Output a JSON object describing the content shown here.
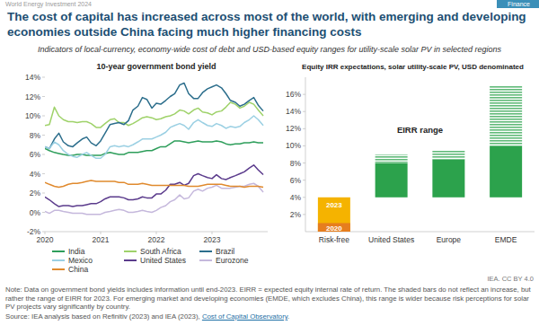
{
  "page": {
    "report": "World Energy Investment 2024",
    "section": "Finance",
    "title": "The cost of capital has increased across most of the world, with emerging and developing economies outside China facing much higher financing costs",
    "subtitle": "Indicators of local-currency, economy-wide cost of debt and USD-based equity ranges for utility-scale solar PV in selected regions",
    "credit": "IEA. CC BY 4.0",
    "note": "Note: Data on government bond yields includes information until end-2023. EIRR = expected equity internal rate of return. The shaded bars do not reflect an increase, but rather the range of EIRR for 2023. For emerging market and developing economies (EMDE, which excludes China), this range is wider because risk perceptions for solar PV projects vary significantly by country.",
    "source": "Source: IEA analysis based on Refinitiv (2023) and IEA (2023),",
    "source_link": "Cost of Capital Observatory",
    "source_end": "."
  },
  "chart_data": [
    {
      "type": "line",
      "title": "10-year government bond yield",
      "x": [
        2020,
        2020.08,
        2020.17,
        2020.25,
        2020.33,
        2020.42,
        2020.5,
        2020.58,
        2020.67,
        2020.75,
        2020.83,
        2020.92,
        2021,
        2021.08,
        2021.17,
        2021.25,
        2021.33,
        2021.42,
        2021.5,
        2021.58,
        2021.67,
        2021.75,
        2021.83,
        2021.92,
        2022,
        2022.08,
        2022.17,
        2022.25,
        2022.33,
        2022.42,
        2022.5,
        2022.58,
        2022.67,
        2022.75,
        2022.83,
        2022.92,
        2023,
        2023.08,
        2023.17,
        2023.25,
        2023.33,
        2023.42,
        2023.5,
        2023.58,
        2023.67,
        2023.75,
        2023.83,
        2023.92
      ],
      "xlim": [
        2020,
        2024
      ],
      "xticks": [
        2020,
        2021,
        2022,
        2023
      ],
      "ylim": [
        -2,
        14
      ],
      "yticks": [
        {
          "value": -2,
          "label": "-2%"
        },
        {
          "value": 0,
          "label": "0%"
        },
        {
          "value": 2,
          "label": "2%"
        },
        {
          "value": 4,
          "label": "4%"
        },
        {
          "value": 6,
          "label": "6%"
        },
        {
          "value": 8,
          "label": "8%"
        },
        {
          "value": 10,
          "label": "10%"
        },
        {
          "value": 12,
          "label": "12%"
        },
        {
          "value": 14,
          "label": "14%"
        }
      ],
      "grid": false,
      "legend": "bottom",
      "series": [
        {
          "name": "India",
          "color": "#2e9e5b",
          "values": [
            6.6,
            6.4,
            6.2,
            6.1,
            6.0,
            5.9,
            5.9,
            6.0,
            6.0,
            5.9,
            5.9,
            5.9,
            5.9,
            6.1,
            6.2,
            6.1,
            6.0,
            6.0,
            6.2,
            6.2,
            6.2,
            6.3,
            6.4,
            6.4,
            6.6,
            6.8,
            6.8,
            7.1,
            7.4,
            7.4,
            7.3,
            7.2,
            7.3,
            7.4,
            7.3,
            7.3,
            7.3,
            7.4,
            7.3,
            7.1,
            7.0,
            7.1,
            7.1,
            7.2,
            7.2,
            7.3,
            7.2,
            7.2
          ]
        },
        {
          "name": "South Africa",
          "color": "#9fd26a",
          "values": [
            9.0,
            9.1,
            10.9,
            10.0,
            9.6,
            9.4,
            9.4,
            9.3,
            9.4,
            9.4,
            9.2,
            8.8,
            8.8,
            9.2,
            9.6,
            9.7,
            9.3,
            9.3,
            9.0,
            9.2,
            9.5,
            9.8,
            9.9,
            9.8,
            9.6,
            9.7,
            9.9,
            10.0,
            10.2,
            10.6,
            10.5,
            10.2,
            10.6,
            10.8,
            10.4,
            10.3,
            10.1,
            10.4,
            10.5,
            10.9,
            11.4,
            11.2,
            10.8,
            11.0,
            11.4,
            11.2,
            10.6,
            10.0
          ]
        },
        {
          "name": "Brazil",
          "color": "#2c6e8c",
          "values": [
            6.8,
            6.6,
            7.6,
            8.2,
            7.3,
            6.9,
            6.8,
            7.2,
            7.6,
            7.8,
            7.2,
            6.9,
            7.4,
            8.2,
            9.1,
            9.2,
            9.3,
            9.1,
            9.5,
            10.6,
            11.0,
            11.9,
            11.7,
            10.8,
            11.3,
            11.2,
            11.6,
            12.0,
            12.3,
            13.2,
            13.4,
            12.3,
            11.8,
            11.8,
            12.4,
            12.8,
            13.0,
            13.2,
            12.9,
            12.3,
            11.6,
            11.4,
            11.0,
            11.2,
            11.6,
            11.9,
            11.1,
            10.5
          ]
        },
        {
          "name": "Mexico",
          "color": "#9bd0e3",
          "values": [
            6.8,
            6.6,
            7.3,
            7.0,
            6.4,
            6.0,
            5.8,
            5.7,
            6.0,
            6.2,
            5.9,
            5.6,
            5.6,
            6.0,
            6.8,
            6.9,
            6.8,
            6.9,
            6.8,
            7.0,
            7.3,
            7.6,
            7.6,
            7.6,
            7.8,
            8.0,
            8.3,
            8.8,
            9.0,
            9.2,
            9.0,
            8.6,
            9.3,
            9.6,
            9.3,
            9.0,
            8.9,
            9.2,
            9.0,
            8.7,
            8.9,
            8.8,
            8.9,
            9.3,
            9.6,
            10.0,
            9.6,
            9.0
          ]
        },
        {
          "name": "United States",
          "color": "#5b3b8c",
          "values": [
            1.6,
            1.3,
            0.9,
            0.6,
            0.7,
            0.7,
            0.6,
            0.7,
            0.7,
            0.8,
            0.9,
            0.9,
            1.1,
            1.4,
            1.6,
            1.6,
            1.6,
            1.5,
            1.3,
            1.3,
            1.4,
            1.6,
            1.5,
            1.5,
            1.9,
            1.9,
            2.3,
            2.9,
            2.9,
            3.1,
            2.8,
            3.0,
            3.8,
            4.0,
            3.8,
            3.6,
            3.5,
            3.9,
            3.5,
            3.4,
            3.6,
            3.8,
            4.0,
            4.2,
            4.6,
            4.9,
            4.4,
            3.9
          ]
        },
        {
          "name": "Eurozone",
          "color": "#c5b8dc",
          "values": [
            0.1,
            -0.1,
            0.2,
            0.2,
            0.1,
            0.0,
            -0.1,
            -0.1,
            -0.1,
            -0.2,
            -0.2,
            -0.2,
            -0.2,
            0.0,
            0.1,
            0.2,
            0.3,
            0.2,
            0.0,
            0.0,
            0.1,
            0.2,
            0.1,
            0.0,
            0.2,
            0.5,
            0.7,
            1.1,
            1.3,
            1.8,
            1.4,
            1.5,
            2.2,
            2.4,
            2.2,
            2.5,
            2.6,
            2.8,
            2.5,
            2.5,
            2.5,
            2.6,
            2.7,
            2.7,
            2.9,
            3.0,
            2.7,
            2.1
          ]
        },
        {
          "name": "China",
          "color": "#e08a2e",
          "values": [
            3.1,
            2.9,
            2.7,
            2.6,
            2.7,
            2.9,
            3.0,
            3.0,
            3.1,
            3.2,
            3.3,
            3.2,
            3.2,
            3.2,
            3.2,
            3.2,
            3.1,
            3.1,
            2.9,
            2.9,
            2.9,
            3.0,
            2.9,
            2.8,
            2.8,
            2.8,
            2.8,
            2.8,
            2.8,
            2.8,
            2.8,
            2.7,
            2.7,
            2.7,
            2.8,
            2.9,
            2.9,
            2.9,
            2.9,
            2.8,
            2.7,
            2.7,
            2.7,
            2.6,
            2.7,
            2.7,
            2.7,
            2.6
          ]
        }
      ]
    },
    {
      "type": "bar",
      "title": "Equity IRR expectations, solar utility-scale PV, USD denominated",
      "categories": [
        "Risk-free",
        "United States",
        "Europe",
        "EMDE"
      ],
      "ylim": [
        0,
        18
      ],
      "yticks": [
        {
          "value": 2,
          "label": "2%"
        },
        {
          "value": 4,
          "label": "4%"
        },
        {
          "value": 6,
          "label": "6%"
        },
        {
          "value": 8,
          "label": "8%"
        },
        {
          "value": 10,
          "label": "10%"
        },
        {
          "value": 12,
          "label": "12%"
        },
        {
          "value": 14,
          "label": "14%"
        },
        {
          "value": 16,
          "label": "16%"
        }
      ],
      "grid": false,
      "series": [
        {
          "name": "2023",
          "color": "#f5b300",
          "values": [
            4,
            null,
            null,
            null
          ]
        },
        {
          "name": "2020",
          "color": "#e67e1e",
          "values": [
            1,
            null,
            null,
            null
          ]
        }
      ],
      "ranges": {
        "name": "EIRR range",
        "color": "#2ca24c",
        "low": [
          null,
          4,
          4,
          4
        ],
        "high": [
          null,
          8,
          8.4,
          10
        ],
        "high_2023": [
          null,
          9,
          9.5,
          17
        ]
      }
    }
  ]
}
